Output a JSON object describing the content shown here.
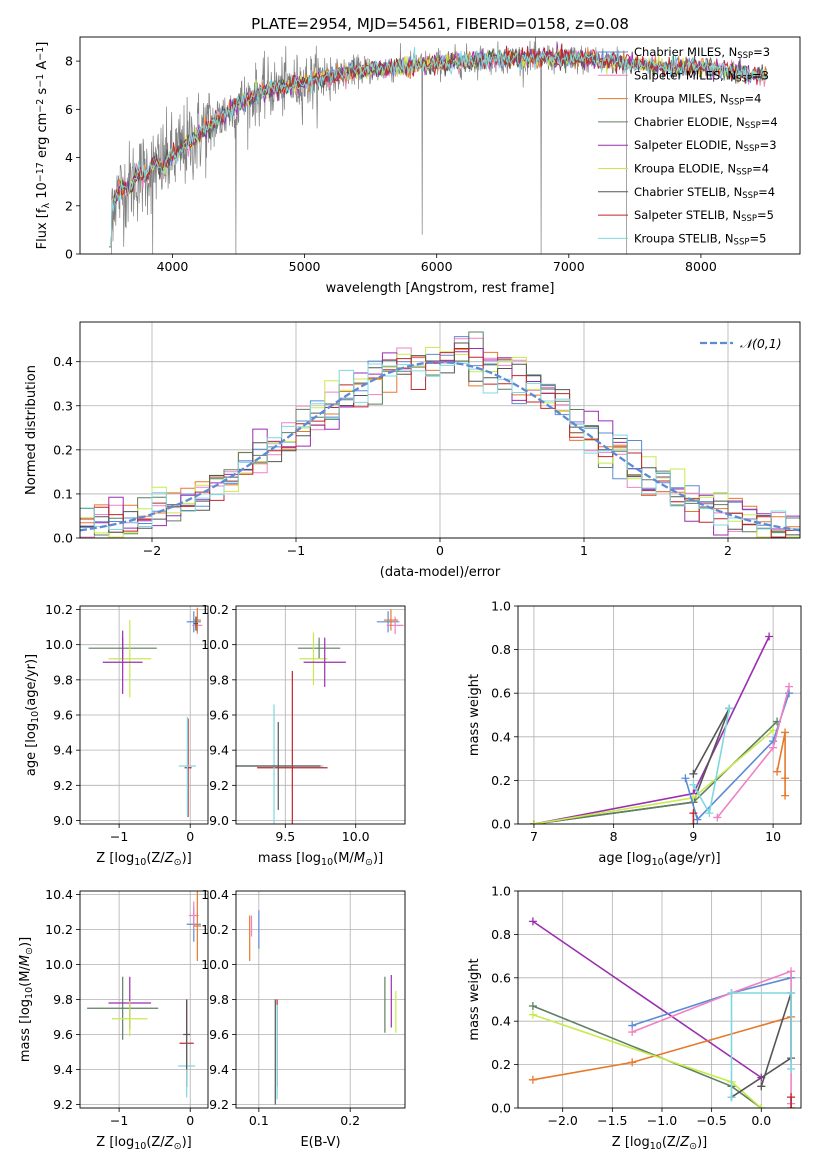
{
  "figure_title": "PLATE=2954, MJD=54561, FIBERID=0158, z=0.08",
  "colors": {
    "Chabrier MILES": "#5b8bd6",
    "Salpeter MILES": "#ee82c5",
    "Kroupa MILES": "#e8782a",
    "Chabrier ELODIE": "#5f7f62",
    "Salpeter ELODIE": "#9a2fb0",
    "Kroupa ELODIE": "#c8ea4c",
    "Chabrier STELIB": "#555555",
    "Salpeter STELIB": "#c0262a",
    "Kroupa STELIB": "#7fd8df",
    "data": "#808080"
  },
  "chart_data": [
    {
      "id": "spectrum",
      "type": "line",
      "title": "PLATE=2954, MJD=54561, FIBERID=0158, z=0.08",
      "xlabel": "wavelength [Angstrom, rest frame]",
      "ylabel": "Flux [f_λ 10^-17 erg cm^-2 s^-1 A^-1]",
      "xlim": [
        3300,
        8750
      ],
      "ylim": [
        0,
        9
      ],
      "xticks": [
        4000,
        5000,
        6000,
        7000,
        8000
      ],
      "yticks": [
        0,
        2,
        4,
        6,
        8
      ],
      "grid": false,
      "legend_position": "right",
      "legend": [
        {
          "label": "Chabrier MILES, N",
          "sub": "SSP",
          "tail": "=3",
          "color_key": "Chabrier MILES"
        },
        {
          "label": "Salpeter MILES, N",
          "sub": "SSP",
          "tail": "=3",
          "color_key": "Salpeter MILES"
        },
        {
          "label": "Kroupa MILES, N",
          "sub": "SSP",
          "tail": "=4",
          "color_key": "Kroupa MILES"
        },
        {
          "label": "Chabrier ELODIE, N",
          "sub": "SSP",
          "tail": "=4",
          "color_key": "Chabrier ELODIE"
        },
        {
          "label": "Salpeter ELODIE, N",
          "sub": "SSP",
          "tail": "=3",
          "color_key": "Salpeter ELODIE"
        },
        {
          "label": "Kroupa ELODIE, N",
          "sub": "SSP",
          "tail": "=4",
          "color_key": "Kroupa ELODIE"
        },
        {
          "label": "Chabrier STELIB, N",
          "sub": "SSP",
          "tail": "=4",
          "color_key": "Chabrier STELIB"
        },
        {
          "label": "Salpeter STELIB, N",
          "sub": "SSP",
          "tail": "=5",
          "color_key": "Salpeter STELIB"
        },
        {
          "label": "Kroupa STELIB, N",
          "sub": "SSP",
          "tail": "=5",
          "color_key": "Kroupa STELIB"
        }
      ],
      "continuum": [
        [
          3520,
          2.3
        ],
        [
          3600,
          2.5
        ],
        [
          3700,
          3.0
        ],
        [
          3800,
          3.4
        ],
        [
          3900,
          3.7
        ],
        [
          4000,
          4.0
        ],
        [
          4100,
          4.5
        ],
        [
          4200,
          5.0
        ],
        [
          4300,
          5.4
        ],
        [
          4400,
          5.8
        ],
        [
          4500,
          6.2
        ],
        [
          4600,
          6.5
        ],
        [
          4700,
          6.8
        ],
        [
          4800,
          6.9
        ],
        [
          4900,
          7.0
        ],
        [
          5000,
          7.1
        ],
        [
          5200,
          7.4
        ],
        [
          5400,
          7.6
        ],
        [
          5600,
          7.7
        ],
        [
          5800,
          7.8
        ],
        [
          6000,
          7.9
        ],
        [
          6200,
          8.0
        ],
        [
          6400,
          8.1
        ],
        [
          6600,
          8.1
        ],
        [
          6800,
          8.15
        ],
        [
          7000,
          8.1
        ],
        [
          7200,
          8.05
        ],
        [
          7400,
          7.95
        ],
        [
          7600,
          7.8
        ],
        [
          7800,
          7.75
        ],
        [
          8000,
          7.75
        ],
        [
          8200,
          7.6
        ],
        [
          8400,
          7.45
        ],
        [
          8500,
          7.4
        ]
      ],
      "data_span": [
        3520,
        7440
      ],
      "model_span": [
        3520,
        8500
      ],
      "dips": [
        [
          3850,
          0
        ],
        [
          4480,
          0
        ],
        [
          5890,
          0.8
        ],
        [
          6790,
          0
        ],
        [
          7440,
          0
        ]
      ]
    },
    {
      "id": "residuals",
      "type": "histogram",
      "xlabel": "(data-model)/error",
      "ylabel": "Normed distribution",
      "xlim": [
        -2.5,
        2.5
      ],
      "ylim": [
        0,
        0.49
      ],
      "xticks": [
        -2,
        -1,
        0,
        1,
        2
      ],
      "yticks": [
        0.0,
        0.1,
        0.2,
        0.3,
        0.4
      ],
      "grid": true,
      "legend_position": "top-right",
      "legend": "N(0,1)",
      "reference_curve": "standard normal",
      "bin_width": 0.1
    },
    {
      "id": "age-vs-Z",
      "type": "scatter",
      "xlabel": "Z [log10(Z/Z⊙)]",
      "ylabel": "age [log10(age/yr)]",
      "xlim": [
        -1.55,
        0.25
      ],
      "ylim": [
        8.98,
        10.22
      ],
      "xticks": [
        -1,
        0
      ],
      "yticks": [
        9.0,
        9.2,
        9.4,
        9.6,
        9.8,
        10.0,
        10.2
      ],
      "grid": true,
      "points": [
        {
          "model": "Chabrier ELODIE",
          "x": -0.95,
          "xerr": 0.48,
          "y": 9.98,
          "yerr": 0.06
        },
        {
          "model": "Kroupa ELODIE",
          "x": -0.85,
          "xerr": 0.3,
          "y": 9.92,
          "yerr": 0.22
        },
        {
          "model": "Salpeter ELODIE",
          "x": -0.95,
          "xerr": 0.28,
          "y": 9.9,
          "yerr": 0.18
        },
        {
          "model": "Chabrier MILES",
          "x": 0.05,
          "xerr": 0.1,
          "y": 10.13,
          "yerr": 0.06
        },
        {
          "model": "Salpeter MILES",
          "x": 0.1,
          "xerr": 0.07,
          "y": 10.11,
          "yerr": 0.05
        },
        {
          "model": "Kroupa MILES",
          "x": 0.1,
          "xerr": 0.05,
          "y": 10.14,
          "yerr": 0.07
        },
        {
          "model": "Chabrier STELIB",
          "x": 0.08,
          "xerr": 0.03,
          "y": 10.12,
          "yerr": 0.04
        },
        {
          "model": "Salpeter STELIB",
          "x": -0.03,
          "xerr": 0.05,
          "y": 9.3,
          "yerr": 0.28
        },
        {
          "model": "Kroupa STELIB",
          "x": -0.04,
          "xerr": 0.12,
          "y": 9.31,
          "yerr": 0.28
        }
      ]
    },
    {
      "id": "age-vs-mass",
      "type": "scatter",
      "xlabel": "mass [log10(M/M⊙)]",
      "ylabel": "",
      "xlim": [
        9.15,
        10.35
      ],
      "ylim": [
        8.98,
        10.22
      ],
      "xticks": [
        9.5,
        10.0
      ],
      "yticks": [
        9.0,
        9.2,
        9.4,
        9.6,
        9.8,
        10.0,
        10.2
      ],
      "grid": true,
      "points": [
        {
          "model": "Chabrier ELODIE",
          "x": 9.74,
          "xerr": 0.15,
          "y": 9.98,
          "yerr": 0.06
        },
        {
          "model": "Kroupa ELODIE",
          "x": 9.7,
          "xerr": 0.1,
          "y": 9.92,
          "yerr": 0.15
        },
        {
          "model": "Salpeter ELODIE",
          "x": 9.78,
          "xerr": 0.15,
          "y": 9.9,
          "yerr": 0.14
        },
        {
          "model": "Chabrier MILES",
          "x": 10.23,
          "xerr": 0.08,
          "y": 10.13,
          "yerr": 0.06
        },
        {
          "model": "Salpeter MILES",
          "x": 10.28,
          "xerr": 0.06,
          "y": 10.11,
          "yerr": 0.05
        },
        {
          "model": "Kroupa MILES",
          "x": 10.25,
          "xerr": 0.05,
          "y": 10.14,
          "yerr": 0.06
        },
        {
          "model": "Salpeter STELIB",
          "x": 9.55,
          "xerr": 0.25,
          "y": 9.3,
          "yerr": 0.55
        },
        {
          "model": "Kroupa STELIB",
          "x": 9.42,
          "xerr": 0.35,
          "y": 9.31,
          "yerr": 0.35
        },
        {
          "model": "Chabrier STELIB",
          "x": 9.45,
          "xerr": 0.3,
          "y": 9.31,
          "yerr": 0.25
        }
      ]
    },
    {
      "id": "weight-vs-age",
      "type": "line",
      "xlabel": "age [log10(age/yr)]",
      "ylabel": "mass weight",
      "xlim": [
        6.8,
        10.35
      ],
      "ylim": [
        0,
        1.0
      ],
      "xticks": [
        7,
        8,
        9,
        10
      ],
      "yticks": [
        0.0,
        0.2,
        0.4,
        0.6,
        0.8,
        1.0
      ],
      "grid": true,
      "series": [
        {
          "model": "Salpeter ELODIE",
          "x": [
            7.0,
            9.0,
            9.95
          ],
          "y": [
            0.0,
            0.14,
            0.86
          ]
        },
        {
          "model": "Chabrier STELIB",
          "x": [
            7.0,
            9.0,
            9.45,
            9.0
          ],
          "y": [
            0.0,
            0.1,
            0.53,
            0.23
          ]
        },
        {
          "model": "Chabrier ELODIE",
          "x": [
            7.0,
            9.0,
            10.05
          ],
          "y": [
            0.0,
            0.1,
            0.47
          ]
        },
        {
          "model": "Kroupa ELODIE",
          "x": [
            7.0,
            9.0,
            10.0
          ],
          "y": [
            0.0,
            0.12,
            0.43
          ]
        },
        {
          "model": "Chabrier MILES",
          "x": [
            8.9,
            9.05,
            10.0,
            10.2
          ],
          "y": [
            0.21,
            0.02,
            0.38,
            0.6
          ]
        },
        {
          "model": "Salpeter MILES",
          "x": [
            9.3,
            10.0,
            10.2
          ],
          "y": [
            0.03,
            0.35,
            0.63
          ]
        },
        {
          "model": "Kroupa MILES",
          "x": [
            10.05,
            10.15,
            10.15,
            10.15
          ],
          "y": [
            0.24,
            0.42,
            0.21,
            0.13
          ]
        },
        {
          "model": "Kroupa STELIB",
          "x": [
            9.0,
            9.2,
            9.45
          ],
          "y": [
            0.18,
            0.05,
            0.53
          ]
        },
        {
          "model": "Salpeter STELIB",
          "x": [
            9.0,
            9.0
          ],
          "y": [
            0.0,
            0.05
          ]
        }
      ]
    },
    {
      "id": "mass-vs-Z",
      "type": "scatter",
      "xlabel": "Z [log10(Z/Z⊙)]",
      "ylabel": "mass [log10(M/M⊙)]",
      "xlim": [
        -1.55,
        0.25
      ],
      "ylim": [
        9.18,
        10.42
      ],
      "xticks": [
        -1,
        0
      ],
      "yticks": [
        9.2,
        9.4,
        9.6,
        9.8,
        10.0,
        10.2,
        10.4
      ],
      "grid": true,
      "points": [
        {
          "model": "Chabrier ELODIE",
          "x": -0.95,
          "xerr": 0.5,
          "y": 9.75,
          "yerr": 0.18
        },
        {
          "model": "Salpeter ELODIE",
          "x": -0.85,
          "xerr": 0.3,
          "y": 9.78,
          "yerr": 0.15
        },
        {
          "model": "Kroupa ELODIE",
          "x": -0.85,
          "xerr": 0.25,
          "y": 9.69,
          "yerr": 0.1
        },
        {
          "model": "Chabrier MILES",
          "x": 0.05,
          "xerr": 0.1,
          "y": 10.23,
          "yerr": 0.1
        },
        {
          "model": "Salpeter MILES",
          "x": 0.05,
          "xerr": 0.07,
          "y": 10.28,
          "yerr": 0.08
        },
        {
          "model": "Kroupa MILES",
          "x": 0.1,
          "xerr": 0.05,
          "y": 10.22,
          "yerr": 0.2
        },
        {
          "model": "Salpeter STELIB",
          "x": -0.05,
          "xerr": 0.1,
          "y": 9.55,
          "yerr": 0.25
        },
        {
          "model": "Kroupa STELIB",
          "x": -0.05,
          "xerr": 0.12,
          "y": 9.42,
          "yerr": 0.18
        },
        {
          "model": "Chabrier STELIB",
          "x": -0.05,
          "xerr": 0.05,
          "y": 9.6,
          "yerr": 0.2
        }
      ]
    },
    {
      "id": "mass-vs-EBV",
      "type": "scatter",
      "xlabel": "E(B-V)",
      "ylabel": "",
      "xlim": [
        0.075,
        0.26
      ],
      "ylim": [
        9.18,
        10.42
      ],
      "xticks": [
        0.1,
        0.2
      ],
      "yticks": [
        9.2,
        9.4,
        9.6,
        9.8,
        10.0,
        10.2,
        10.4
      ],
      "grid": true,
      "points": [
        {
          "model": "Kroupa MILES",
          "x": 0.09,
          "y": 10.15,
          "yerr": 0.13
        },
        {
          "model": "Salpeter MILES",
          "x": 0.092,
          "y": 10.22,
          "yerr": 0.06
        },
        {
          "model": "Chabrier MILES",
          "x": 0.1,
          "y": 10.2,
          "yerr": 0.11
        },
        {
          "model": "Salpeter STELIB",
          "x": 0.12,
          "y": 9.55,
          "yerr": 0.25
        },
        {
          "model": "Chabrier STELIB",
          "x": 0.118,
          "y": 9.5,
          "yerr": 0.3
        },
        {
          "model": "Kroupa STELIB",
          "x": 0.12,
          "y": 9.5,
          "yerr": 0.27
        },
        {
          "model": "Chabrier ELODIE",
          "x": 0.238,
          "y": 9.77,
          "yerr": 0.16
        },
        {
          "model": "Salpeter ELODIE",
          "x": 0.245,
          "y": 9.79,
          "yerr": 0.15
        },
        {
          "model": "Kroupa ELODIE",
          "x": 0.25,
          "y": 9.73,
          "yerr": 0.12
        }
      ]
    },
    {
      "id": "weight-vs-Z",
      "type": "line",
      "xlabel": "Z [log10(Z/Z⊙)]",
      "ylabel": "mass weight",
      "xlim": [
        -2.45,
        0.4
      ],
      "ylim": [
        0,
        1.0
      ],
      "xticks": [
        -2.0,
        -1.5,
        -1.0,
        -0.5,
        0.0
      ],
      "yticks": [
        0.0,
        0.2,
        0.4,
        0.6,
        0.8,
        1.0
      ],
      "grid": true,
      "series": [
        {
          "model": "Salpeter ELODIE",
          "x": [
            -2.3,
            0.0
          ],
          "y": [
            0.86,
            0.14
          ]
        },
        {
          "model": "Chabrier MILES",
          "x": [
            -1.3,
            -0.3,
            0.3
          ],
          "y": [
            0.38,
            0.53,
            0.6
          ]
        },
        {
          "model": "Salpeter MILES",
          "x": [
            -1.3,
            -0.3,
            0.3,
            0.3
          ],
          "y": [
            0.35,
            0.53,
            0.63,
            0.02
          ]
        },
        {
          "model": "Kroupa MILES",
          "x": [
            -2.3,
            -1.3,
            0.3
          ],
          "y": [
            0.13,
            0.21,
            0.42
          ]
        },
        {
          "model": "Chabrier ELODIE",
          "x": [
            -2.3,
            -0.3,
            0.0
          ],
          "y": [
            0.47,
            0.1,
            0.0
          ]
        },
        {
          "model": "Kroupa ELODIE",
          "x": [
            -2.3,
            -0.3,
            0.0
          ],
          "y": [
            0.43,
            0.12,
            0.0
          ]
        },
        {
          "model": "Chabrier STELIB",
          "x": [
            -0.3,
            0.3,
            0.3,
            0.0
          ],
          "y": [
            0.05,
            0.23,
            0.53,
            0.1
          ]
        },
        {
          "model": "Kroupa STELIB",
          "x": [
            -0.3,
            -0.3,
            0.3,
            0.3
          ],
          "y": [
            0.05,
            0.53,
            0.53,
            0.18
          ]
        },
        {
          "model": "Salpeter STELIB",
          "x": [
            0.3,
            0.3
          ],
          "y": [
            0.0,
            0.05
          ]
        }
      ]
    }
  ]
}
